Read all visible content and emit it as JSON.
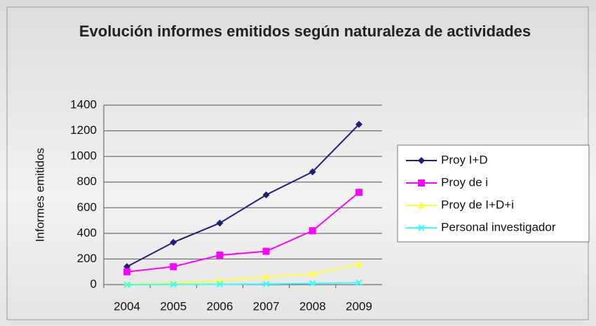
{
  "chart_data": {
    "type": "line",
    "title": "Evolución informes emitidos según naturaleza de actividades",
    "y_label": "Informes emitidos",
    "categories": [
      "2004",
      "2005",
      "2006",
      "2007",
      "2008",
      "2009"
    ],
    "series": [
      {
        "name": "Proy I+D",
        "color": "#1f1f7a",
        "marker": "diamond",
        "values": [
          140,
          330,
          480,
          700,
          880,
          1250
        ]
      },
      {
        "name": "Proy de i",
        "color": "#ff00ff",
        "marker": "square",
        "values": [
          100,
          140,
          230,
          260,
          420,
          720
        ]
      },
      {
        "name": "Proy de I+D+i",
        "color": "#ffff33",
        "marker": "triangle",
        "values": [
          5,
          10,
          30,
          60,
          85,
          160
        ]
      },
      {
        "name": "Personal investigador",
        "color": "#33ffff",
        "marker": "x",
        "values": [
          0,
          2,
          3,
          5,
          10,
          15
        ]
      }
    ],
    "ylim": [
      0,
      1400
    ],
    "yticks": [
      0,
      200,
      400,
      600,
      800,
      1000,
      1200,
      1400
    ],
    "grid": true,
    "legend": "right"
  }
}
